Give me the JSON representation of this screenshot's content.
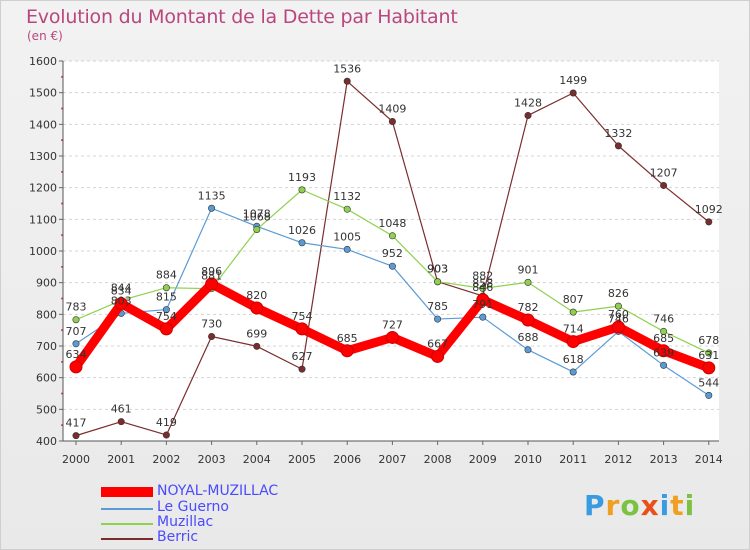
{
  "header": {
    "title": "Evolution du Montant de la Dette par Habitant",
    "subtitle": "(en €)"
  },
  "logo": {
    "text": "Proxiti"
  },
  "chart_data": {
    "type": "line",
    "title": "Evolution du Montant de la Dette par Habitant",
    "subtitle": "(en €)",
    "xlabel": "",
    "ylabel": "",
    "x": [
      "2000",
      "2001",
      "2002",
      "2003",
      "2004",
      "2005",
      "2006",
      "2007",
      "2008",
      "2009",
      "2010",
      "2011",
      "2012",
      "2013",
      "2014"
    ],
    "ylim": [
      400,
      1600
    ],
    "yticks": [
      "400",
      "500",
      "600",
      "700",
      "800",
      "900",
      "1000",
      "1100",
      "1200",
      "1300",
      "1400",
      "1500",
      "1600"
    ],
    "grid": "horizontal dashed",
    "legend_position": "bottom-left",
    "series": [
      {
        "name": "NOYAL-MUZILLAC",
        "color": "#ff0000",
        "values": [
          634,
          834,
          754,
          896,
          820,
          754,
          685,
          727,
          667,
          846,
          782,
          714,
          760,
          685,
          631
        ],
        "labels": [
          "634",
          "834",
          "754",
          "896",
          "820",
          "754",
          "685",
          "727",
          "667",
          "846",
          "782",
          "714",
          "760",
          "685",
          "631"
        ]
      },
      {
        "name": "Le Guerno",
        "color": "#5b9bd5",
        "values": [
          707,
          803,
          815,
          1135,
          1078,
          1026,
          1005,
          952,
          785,
          791,
          688,
          618,
          746,
          639,
          544
        ],
        "labels": [
          "707",
          "803",
          "815",
          "1135",
          "1078",
          "1026",
          "1005",
          "952",
          "785",
          "791",
          "688",
          "618",
          "746",
          "639",
          "544"
        ]
      },
      {
        "name": "Muzillac",
        "color": "#8fd14f",
        "values": [
          783,
          844,
          884,
          881,
          1068,
          1193,
          1132,
          1048,
          903,
          882,
          901,
          807,
          826,
          746,
          678
        ],
        "labels": [
          "783",
          "844",
          "884",
          "881",
          "1068",
          "1193",
          "1132",
          "1048",
          "903",
          "882",
          "901",
          "807",
          "826",
          "746",
          "678"
        ]
      },
      {
        "name": "Berric",
        "color": "#7b2d2d",
        "values": [
          417,
          461,
          419,
          730,
          699,
          627,
          1536,
          1409,
          903,
          858,
          1428,
          1499,
          1332,
          1207,
          1092
        ],
        "labels": [
          "417",
          "461",
          "419",
          "730",
          "699",
          "627",
          "1536",
          "1409",
          "903",
          "858",
          "1428",
          "1499",
          "1332",
          "1207",
          "1092"
        ]
      }
    ]
  }
}
